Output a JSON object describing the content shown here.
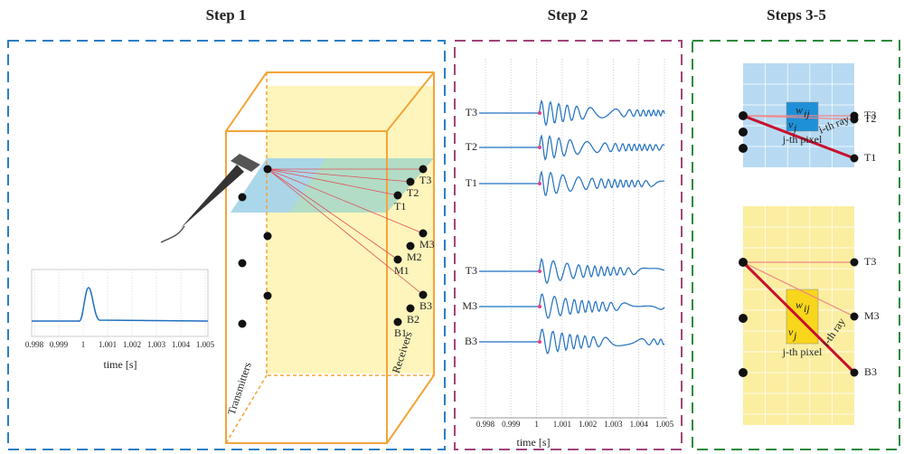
{
  "panels": [
    {
      "title": "Step 1",
      "plot": {
        "ticks": [
          "0.998",
          "0.999",
          "1",
          "1.001",
          "1.002",
          "1.003",
          "1.004",
          "1.005"
        ],
        "x_label": "time [s]"
      },
      "transmitters_label": "Transmitters",
      "receivers_label": "Receivers",
      "receivers": [
        "T3",
        "T2",
        "T1",
        "M3",
        "M2",
        "M1",
        "B3",
        "B2",
        "B1"
      ]
    },
    {
      "title": "Step 2",
      "traces": [
        "T3",
        "T2",
        "T1",
        "T3",
        "M3",
        "B3"
      ],
      "plot": {
        "ticks": [
          "0.998",
          "0.999",
          "1",
          "1.001",
          "1.002",
          "1.003",
          "1.004",
          "1.005"
        ],
        "x_label": "time [s]"
      }
    },
    {
      "title": "Steps 3-5",
      "top": {
        "receivers": [
          "T3",
          "T2",
          "T1"
        ],
        "weight_base": "w",
        "weight_sub": "ij",
        "velocity_base": "v",
        "velocity_sub": "j",
        "ray": "i-th ray",
        "pixel": "j-th pixel"
      },
      "bottom": {
        "receivers": [
          "T3",
          "M3",
          "B3"
        ],
        "weight_base": "w",
        "weight_sub": "ij",
        "velocity_base": "v",
        "velocity_sub": "j",
        "ray": "i-th ray",
        "pixel": "j-th pixel"
      }
    }
  ]
}
